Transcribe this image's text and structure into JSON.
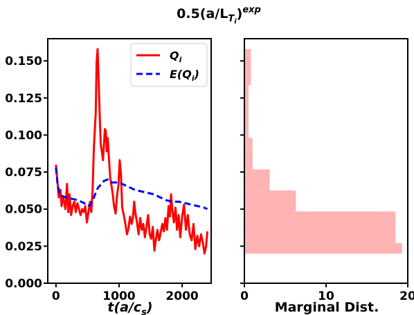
{
  "figure": {
    "title_main": "0.5(a/L",
    "title_sub": "T",
    "title_subsub": "i",
    "title_close": ")",
    "title_sup": "exp"
  },
  "chart_data": [
    {
      "type": "line",
      "xlabel_main": "t(a/c",
      "xlabel_sub": "s",
      "xlabel_close": ")",
      "ylabel": "",
      "xlim": [
        -130,
        2460
      ],
      "ylim": [
        0.0,
        0.165
      ],
      "xticks": [
        0,
        1000,
        2000
      ],
      "xtick_labels": [
        "0",
        "1000",
        "2000"
      ],
      "yticks": [
        0.0,
        0.025,
        0.05,
        0.075,
        0.1,
        0.125,
        0.15
      ],
      "ytick_labels": [
        "0.000",
        "0.025",
        "0.050",
        "0.075",
        "0.100",
        "0.125",
        "0.150"
      ],
      "grid": false,
      "legend": "top-right",
      "series": [
        {
          "name_main": "Q",
          "name_sub": "i",
          "color": "#ff0000",
          "style": "solid",
          "points": [
            [
              0,
              0.08
            ],
            [
              25,
              0.068
            ],
            [
              45,
              0.058
            ],
            [
              70,
              0.063
            ],
            [
              90,
              0.052
            ],
            [
              110,
              0.058
            ],
            [
              130,
              0.055
            ],
            [
              150,
              0.05
            ],
            [
              175,
              0.067
            ],
            [
              195,
              0.048
            ],
            [
              215,
              0.06
            ],
            [
              240,
              0.046
            ],
            [
              265,
              0.052
            ],
            [
              290,
              0.055
            ],
            [
              315,
              0.048
            ],
            [
              340,
              0.054
            ],
            [
              365,
              0.05
            ],
            [
              390,
              0.046
            ],
            [
              415,
              0.05
            ],
            [
              440,
              0.048
            ],
            [
              465,
              0.052
            ],
            [
              490,
              0.041
            ],
            [
              515,
              0.048
            ],
            [
              540,
              0.055
            ],
            [
              560,
              0.048
            ],
            [
              580,
              0.062
            ],
            [
              600,
              0.09
            ],
            [
              615,
              0.103
            ],
            [
              630,
              0.115
            ],
            [
              645,
              0.15
            ],
            [
              660,
              0.158
            ],
            [
              675,
              0.138
            ],
            [
              690,
              0.118
            ],
            [
              710,
              0.094
            ],
            [
              730,
              0.088
            ],
            [
              745,
              0.083
            ],
            [
              760,
              0.093
            ],
            [
              775,
              0.104
            ],
            [
              790,
              0.103
            ],
            [
              805,
              0.089
            ],
            [
              820,
              0.098
            ],
            [
              840,
              0.084
            ],
            [
              860,
              0.071
            ],
            [
              880,
              0.066
            ],
            [
              900,
              0.06
            ],
            [
              920,
              0.052
            ],
            [
              945,
              0.047
            ],
            [
              970,
              0.06
            ],
            [
              990,
              0.066
            ],
            [
              1010,
              0.083
            ],
            [
              1030,
              0.074
            ],
            [
              1050,
              0.051
            ],
            [
              1075,
              0.046
            ],
            [
              1100,
              0.04
            ],
            [
              1125,
              0.033
            ],
            [
              1150,
              0.037
            ],
            [
              1175,
              0.045
            ],
            [
              1200,
              0.04
            ],
            [
              1220,
              0.044
            ],
            [
              1240,
              0.055
            ],
            [
              1260,
              0.047
            ],
            [
              1285,
              0.041
            ],
            [
              1310,
              0.033
            ],
            [
              1335,
              0.044
            ],
            [
              1360,
              0.036
            ],
            [
              1385,
              0.04
            ],
            [
              1410,
              0.031
            ],
            [
              1435,
              0.038
            ],
            [
              1460,
              0.046
            ],
            [
              1485,
              0.033
            ],
            [
              1510,
              0.03
            ],
            [
              1535,
              0.038
            ],
            [
              1560,
              0.022
            ],
            [
              1585,
              0.03
            ],
            [
              1610,
              0.036
            ],
            [
              1635,
              0.029
            ],
            [
              1660,
              0.034
            ],
            [
              1685,
              0.04
            ],
            [
              1710,
              0.035
            ],
            [
              1735,
              0.044
            ],
            [
              1760,
              0.036
            ],
            [
              1785,
              0.052
            ],
            [
              1805,
              0.045
            ],
            [
              1825,
              0.06
            ],
            [
              1845,
              0.049
            ],
            [
              1870,
              0.041
            ],
            [
              1895,
              0.051
            ],
            [
              1920,
              0.036
            ],
            [
              1945,
              0.046
            ],
            [
              1970,
              0.031
            ],
            [
              2000,
              0.045
            ],
            [
              2030,
              0.053
            ],
            [
              2060,
              0.036
            ],
            [
              2090,
              0.046
            ],
            [
              2120,
              0.033
            ],
            [
              2150,
              0.029
            ],
            [
              2180,
              0.04
            ],
            [
              2210,
              0.023
            ],
            [
              2240,
              0.032
            ],
            [
              2270,
              0.025
            ],
            [
              2300,
              0.033
            ],
            [
              2330,
              0.027
            ],
            [
              2355,
              0.02
            ],
            [
              2380,
              0.025
            ],
            [
              2400,
              0.035
            ]
          ]
        },
        {
          "name_main": "E(Q",
          "name_sub": "i",
          "name_close": ")",
          "color": "#0000ff",
          "style": "dashed",
          "points": [
            [
              0,
              0.078
            ],
            [
              25,
              0.067
            ],
            [
              50,
              0.061
            ],
            [
              90,
              0.059
            ],
            [
              150,
              0.058
            ],
            [
              250,
              0.057
            ],
            [
              350,
              0.056
            ],
            [
              450,
              0.054
            ],
            [
              500,
              0.052
            ],
            [
              550,
              0.053
            ],
            [
              580,
              0.055
            ],
            [
              620,
              0.06
            ],
            [
              660,
              0.064
            ],
            [
              700,
              0.066
            ],
            [
              760,
              0.069
            ],
            [
              820,
              0.07
            ],
            [
              880,
              0.068
            ],
            [
              950,
              0.068
            ],
            [
              1000,
              0.068
            ],
            [
              1050,
              0.067
            ],
            [
              1150,
              0.065
            ],
            [
              1250,
              0.063
            ],
            [
              1350,
              0.062
            ],
            [
              1450,
              0.061
            ],
            [
              1550,
              0.06
            ],
            [
              1650,
              0.058
            ],
            [
              1750,
              0.056
            ],
            [
              1850,
              0.055
            ],
            [
              1950,
              0.055
            ],
            [
              2050,
              0.054
            ],
            [
              2150,
              0.053
            ],
            [
              2250,
              0.052
            ],
            [
              2350,
              0.051
            ],
            [
              2400,
              0.05
            ]
          ]
        }
      ]
    },
    {
      "type": "bar",
      "orientation": "horizontal",
      "xlabel": "Marginal Dist.",
      "xlim": [
        0,
        20
      ],
      "xticks": [
        0,
        10,
        20
      ],
      "xtick_labels": [
        "0",
        "10",
        "20"
      ],
      "ylim": [
        0.0,
        0.165
      ],
      "color": "#ffb3b3",
      "bins": [
        {
          "lo": 0.02,
          "hi": 0.0271,
          "value": 19.3
        },
        {
          "lo": 0.0271,
          "hi": 0.0342,
          "value": 18.5
        },
        {
          "lo": 0.0342,
          "hi": 0.0413,
          "value": 18.5
        },
        {
          "lo": 0.0413,
          "hi": 0.0484,
          "value": 18.5
        },
        {
          "lo": 0.0484,
          "hi": 0.0555,
          "value": 6.3
        },
        {
          "lo": 0.0555,
          "hi": 0.0626,
          "value": 6.3
        },
        {
          "lo": 0.0626,
          "hi": 0.0697,
          "value": 3.1
        },
        {
          "lo": 0.0697,
          "hi": 0.0768,
          "value": 3.1
        },
        {
          "lo": 0.0768,
          "hi": 0.0839,
          "value": 1.0
        },
        {
          "lo": 0.0839,
          "hi": 0.091,
          "value": 1.0
        },
        {
          "lo": 0.091,
          "hi": 0.0981,
          "value": 1.0
        },
        {
          "lo": 0.0981,
          "hi": 0.1052,
          "value": 0.5
        },
        {
          "lo": 0.1052,
          "hi": 0.1123,
          "value": 0.5
        },
        {
          "lo": 0.1123,
          "hi": 0.1194,
          "value": 0.5
        },
        {
          "lo": 0.1194,
          "hi": 0.1265,
          "value": 0.5
        },
        {
          "lo": 0.1265,
          "hi": 0.1336,
          "value": 0.5
        },
        {
          "lo": 0.1336,
          "hi": 0.1407,
          "value": 0.8
        },
        {
          "lo": 0.1407,
          "hi": 0.1478,
          "value": 0.8
        },
        {
          "lo": 0.1478,
          "hi": 0.1549,
          "value": 0.8
        },
        {
          "lo": 0.1549,
          "hi": 0.158,
          "value": 0.8
        }
      ]
    }
  ]
}
